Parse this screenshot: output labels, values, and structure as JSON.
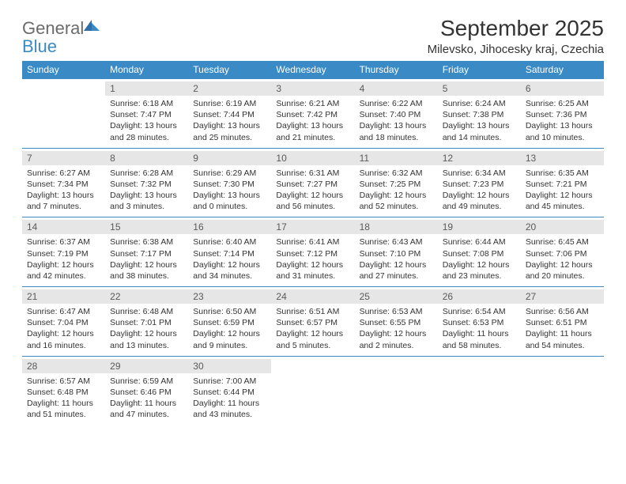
{
  "brand": {
    "general": "General",
    "blue": "Blue"
  },
  "title": "September 2025",
  "location": "Milevsko, Jihocesky kraj, Czechia",
  "colors": {
    "header_bg": "#3a8ac6",
    "header_text": "#ffffff",
    "daynum_bg": "#e6e6e6",
    "daynum_text": "#5a5a5a",
    "row_border": "#3a8ac6",
    "body_text": "#333333",
    "logo_gray": "#6b6b6b",
    "logo_blue": "#3a8ac6"
  },
  "day_headers": [
    "Sunday",
    "Monday",
    "Tuesday",
    "Wednesday",
    "Thursday",
    "Friday",
    "Saturday"
  ],
  "weeks": [
    [
      null,
      {
        "n": "1",
        "sunrise": "Sunrise: 6:18 AM",
        "sunset": "Sunset: 7:47 PM",
        "day1": "Daylight: 13 hours",
        "day2": "and 28 minutes."
      },
      {
        "n": "2",
        "sunrise": "Sunrise: 6:19 AM",
        "sunset": "Sunset: 7:44 PM",
        "day1": "Daylight: 13 hours",
        "day2": "and 25 minutes."
      },
      {
        "n": "3",
        "sunrise": "Sunrise: 6:21 AM",
        "sunset": "Sunset: 7:42 PM",
        "day1": "Daylight: 13 hours",
        "day2": "and 21 minutes."
      },
      {
        "n": "4",
        "sunrise": "Sunrise: 6:22 AM",
        "sunset": "Sunset: 7:40 PM",
        "day1": "Daylight: 13 hours",
        "day2": "and 18 minutes."
      },
      {
        "n": "5",
        "sunrise": "Sunrise: 6:24 AM",
        "sunset": "Sunset: 7:38 PM",
        "day1": "Daylight: 13 hours",
        "day2": "and 14 minutes."
      },
      {
        "n": "6",
        "sunrise": "Sunrise: 6:25 AM",
        "sunset": "Sunset: 7:36 PM",
        "day1": "Daylight: 13 hours",
        "day2": "and 10 minutes."
      }
    ],
    [
      {
        "n": "7",
        "sunrise": "Sunrise: 6:27 AM",
        "sunset": "Sunset: 7:34 PM",
        "day1": "Daylight: 13 hours",
        "day2": "and 7 minutes."
      },
      {
        "n": "8",
        "sunrise": "Sunrise: 6:28 AM",
        "sunset": "Sunset: 7:32 PM",
        "day1": "Daylight: 13 hours",
        "day2": "and 3 minutes."
      },
      {
        "n": "9",
        "sunrise": "Sunrise: 6:29 AM",
        "sunset": "Sunset: 7:30 PM",
        "day1": "Daylight: 13 hours",
        "day2": "and 0 minutes."
      },
      {
        "n": "10",
        "sunrise": "Sunrise: 6:31 AM",
        "sunset": "Sunset: 7:27 PM",
        "day1": "Daylight: 12 hours",
        "day2": "and 56 minutes."
      },
      {
        "n": "11",
        "sunrise": "Sunrise: 6:32 AM",
        "sunset": "Sunset: 7:25 PM",
        "day1": "Daylight: 12 hours",
        "day2": "and 52 minutes."
      },
      {
        "n": "12",
        "sunrise": "Sunrise: 6:34 AM",
        "sunset": "Sunset: 7:23 PM",
        "day1": "Daylight: 12 hours",
        "day2": "and 49 minutes."
      },
      {
        "n": "13",
        "sunrise": "Sunrise: 6:35 AM",
        "sunset": "Sunset: 7:21 PM",
        "day1": "Daylight: 12 hours",
        "day2": "and 45 minutes."
      }
    ],
    [
      {
        "n": "14",
        "sunrise": "Sunrise: 6:37 AM",
        "sunset": "Sunset: 7:19 PM",
        "day1": "Daylight: 12 hours",
        "day2": "and 42 minutes."
      },
      {
        "n": "15",
        "sunrise": "Sunrise: 6:38 AM",
        "sunset": "Sunset: 7:17 PM",
        "day1": "Daylight: 12 hours",
        "day2": "and 38 minutes."
      },
      {
        "n": "16",
        "sunrise": "Sunrise: 6:40 AM",
        "sunset": "Sunset: 7:14 PM",
        "day1": "Daylight: 12 hours",
        "day2": "and 34 minutes."
      },
      {
        "n": "17",
        "sunrise": "Sunrise: 6:41 AM",
        "sunset": "Sunset: 7:12 PM",
        "day1": "Daylight: 12 hours",
        "day2": "and 31 minutes."
      },
      {
        "n": "18",
        "sunrise": "Sunrise: 6:43 AM",
        "sunset": "Sunset: 7:10 PM",
        "day1": "Daylight: 12 hours",
        "day2": "and 27 minutes."
      },
      {
        "n": "19",
        "sunrise": "Sunrise: 6:44 AM",
        "sunset": "Sunset: 7:08 PM",
        "day1": "Daylight: 12 hours",
        "day2": "and 23 minutes."
      },
      {
        "n": "20",
        "sunrise": "Sunrise: 6:45 AM",
        "sunset": "Sunset: 7:06 PM",
        "day1": "Daylight: 12 hours",
        "day2": "and 20 minutes."
      }
    ],
    [
      {
        "n": "21",
        "sunrise": "Sunrise: 6:47 AM",
        "sunset": "Sunset: 7:04 PM",
        "day1": "Daylight: 12 hours",
        "day2": "and 16 minutes."
      },
      {
        "n": "22",
        "sunrise": "Sunrise: 6:48 AM",
        "sunset": "Sunset: 7:01 PM",
        "day1": "Daylight: 12 hours",
        "day2": "and 13 minutes."
      },
      {
        "n": "23",
        "sunrise": "Sunrise: 6:50 AM",
        "sunset": "Sunset: 6:59 PM",
        "day1": "Daylight: 12 hours",
        "day2": "and 9 minutes."
      },
      {
        "n": "24",
        "sunrise": "Sunrise: 6:51 AM",
        "sunset": "Sunset: 6:57 PM",
        "day1": "Daylight: 12 hours",
        "day2": "and 5 minutes."
      },
      {
        "n": "25",
        "sunrise": "Sunrise: 6:53 AM",
        "sunset": "Sunset: 6:55 PM",
        "day1": "Daylight: 12 hours",
        "day2": "and 2 minutes."
      },
      {
        "n": "26",
        "sunrise": "Sunrise: 6:54 AM",
        "sunset": "Sunset: 6:53 PM",
        "day1": "Daylight: 11 hours",
        "day2": "and 58 minutes."
      },
      {
        "n": "27",
        "sunrise": "Sunrise: 6:56 AM",
        "sunset": "Sunset: 6:51 PM",
        "day1": "Daylight: 11 hours",
        "day2": "and 54 minutes."
      }
    ],
    [
      {
        "n": "28",
        "sunrise": "Sunrise: 6:57 AM",
        "sunset": "Sunset: 6:48 PM",
        "day1": "Daylight: 11 hours",
        "day2": "and 51 minutes."
      },
      {
        "n": "29",
        "sunrise": "Sunrise: 6:59 AM",
        "sunset": "Sunset: 6:46 PM",
        "day1": "Daylight: 11 hours",
        "day2": "and 47 minutes."
      },
      {
        "n": "30",
        "sunrise": "Sunrise: 7:00 AM",
        "sunset": "Sunset: 6:44 PM",
        "day1": "Daylight: 11 hours",
        "day2": "and 43 minutes."
      },
      null,
      null,
      null,
      null
    ]
  ]
}
